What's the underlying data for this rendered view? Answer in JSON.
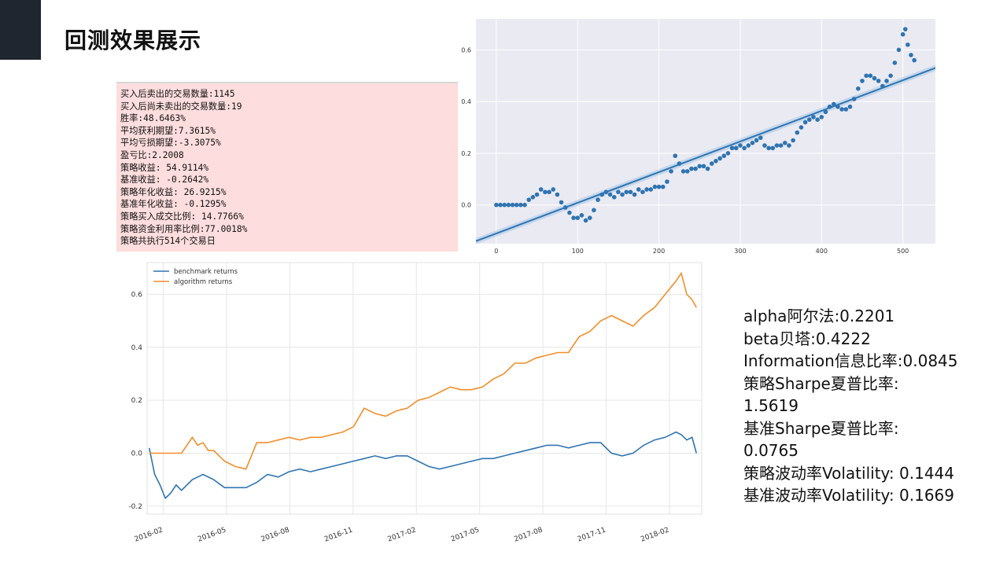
{
  "title": "回测效果展示",
  "stats_lines": [
    "买入后卖出的交易数量:1145",
    "买入后尚未卖出的交易数量:19",
    "胜率:48.6463%",
    "平均获利期望:7.3615%",
    "平均亏损期望:-3.3075%",
    "盈亏比:2.2008",
    "策略收益: 54.9114%",
    "基准收益: -0.2642%",
    "策略年化收益: 26.9215%",
    "基准年化收益: -0.1295%",
    "策略买入成交比例: 14.7766%",
    "策略资金利用率比例:77.0018%",
    "策略共执行514个交易日"
  ],
  "metrics_lines": [
    "alpha阿尔法:0.2201",
    "beta贝塔:0.4222",
    "Information信息比率:0.0845",
    "策略Sharpe夏普比率:",
    "1.5619",
    "基准Sharpe夏普比率:",
    "0.0765",
    "策略波动率Volatility: 0.1444",
    "基准波动率Volatility: 0.1669"
  ],
  "colors": {
    "series_blue": "#2f74b1",
    "series_orange": "#f28e2b",
    "stats_bg": "#fddddd",
    "corner": "#1f2630"
  },
  "chart_data": [
    {
      "type": "scatter",
      "title": "",
      "xlabel": "",
      "ylabel": "",
      "xlim": [
        -25,
        540
      ],
      "ylim": [
        -0.15,
        0.72
      ],
      "xticks": [
        0,
        100,
        200,
        300,
        400,
        500
      ],
      "yticks": [
        0.0,
        0.2,
        0.4,
        0.6
      ],
      "grid": true,
      "points_xy": [
        [
          0,
          0.0
        ],
        [
          5,
          0.0
        ],
        [
          10,
          0.0
        ],
        [
          15,
          0.0
        ],
        [
          20,
          0.0
        ],
        [
          25,
          0.0
        ],
        [
          30,
          0.0
        ],
        [
          35,
          0.0
        ],
        [
          40,
          0.02
        ],
        [
          45,
          0.03
        ],
        [
          50,
          0.04
        ],
        [
          55,
          0.06
        ],
        [
          60,
          0.05
        ],
        [
          65,
          0.05
        ],
        [
          70,
          0.06
        ],
        [
          75,
          0.04
        ],
        [
          80,
          0.01
        ],
        [
          85,
          -0.01
        ],
        [
          90,
          -0.03
        ],
        [
          95,
          -0.05
        ],
        [
          100,
          -0.05
        ],
        [
          105,
          -0.04
        ],
        [
          110,
          -0.06
        ],
        [
          115,
          -0.05
        ],
        [
          120,
          -0.02
        ],
        [
          125,
          0.02
        ],
        [
          130,
          0.04
        ],
        [
          135,
          0.05
        ],
        [
          140,
          0.04
        ],
        [
          145,
          0.03
        ],
        [
          150,
          0.05
        ],
        [
          155,
          0.04
        ],
        [
          160,
          0.05
        ],
        [
          165,
          0.05
        ],
        [
          170,
          0.04
        ],
        [
          175,
          0.06
        ],
        [
          180,
          0.05
        ],
        [
          185,
          0.06
        ],
        [
          190,
          0.06
        ],
        [
          195,
          0.07
        ],
        [
          200,
          0.07
        ],
        [
          205,
          0.07
        ],
        [
          210,
          0.09
        ],
        [
          215,
          0.13
        ],
        [
          220,
          0.19
        ],
        [
          225,
          0.16
        ],
        [
          230,
          0.13
        ],
        [
          235,
          0.13
        ],
        [
          240,
          0.14
        ],
        [
          245,
          0.14
        ],
        [
          250,
          0.15
        ],
        [
          255,
          0.15
        ],
        [
          260,
          0.14
        ],
        [
          265,
          0.16
        ],
        [
          270,
          0.17
        ],
        [
          275,
          0.18
        ],
        [
          280,
          0.19
        ],
        [
          285,
          0.2
        ],
        [
          290,
          0.22
        ],
        [
          295,
          0.22
        ],
        [
          300,
          0.23
        ],
        [
          305,
          0.22
        ],
        [
          310,
          0.23
        ],
        [
          315,
          0.24
        ],
        [
          320,
          0.25
        ],
        [
          325,
          0.26
        ],
        [
          330,
          0.23
        ],
        [
          335,
          0.22
        ],
        [
          340,
          0.22
        ],
        [
          345,
          0.23
        ],
        [
          350,
          0.23
        ],
        [
          355,
          0.24
        ],
        [
          360,
          0.23
        ],
        [
          365,
          0.25
        ],
        [
          370,
          0.28
        ],
        [
          375,
          0.3
        ],
        [
          380,
          0.32
        ],
        [
          385,
          0.33
        ],
        [
          390,
          0.34
        ],
        [
          395,
          0.33
        ],
        [
          400,
          0.34
        ],
        [
          405,
          0.36
        ],
        [
          410,
          0.38
        ],
        [
          415,
          0.39
        ],
        [
          420,
          0.38
        ],
        [
          425,
          0.37
        ],
        [
          430,
          0.37
        ],
        [
          435,
          0.38
        ],
        [
          440,
          0.41
        ],
        [
          445,
          0.45
        ],
        [
          450,
          0.48
        ],
        [
          455,
          0.5
        ],
        [
          460,
          0.5
        ],
        [
          465,
          0.49
        ],
        [
          470,
          0.48
        ],
        [
          475,
          0.46
        ],
        [
          480,
          0.48
        ],
        [
          485,
          0.5
        ],
        [
          490,
          0.55
        ],
        [
          495,
          0.6
        ],
        [
          500,
          0.66
        ],
        [
          503,
          0.68
        ],
        [
          506,
          0.62
        ],
        [
          510,
          0.58
        ],
        [
          514,
          0.56
        ]
      ],
      "fit_line": {
        "x": [
          -25,
          540
        ],
        "y": [
          -0.14,
          0.53
        ]
      }
    },
    {
      "type": "line",
      "title": "",
      "xlabel": "",
      "ylabel": "",
      "x_ticks": [
        "2016-02",
        "2016-05",
        "2016-08",
        "2016-11",
        "2017-02",
        "2017-05",
        "2017-08",
        "2017-11",
        "2018-02"
      ],
      "xlim": [
        -2,
        514
      ],
      "ylim": [
        -0.23,
        0.72
      ],
      "yticks": [
        -0.2,
        0.0,
        0.2,
        0.4,
        0.6
      ],
      "grid": true,
      "legend_position": "top-left",
      "series": [
        {
          "name": "benchmark returns",
          "color": "#2f74b1",
          "x": [
            0,
            5,
            10,
            15,
            20,
            25,
            30,
            40,
            50,
            60,
            70,
            80,
            90,
            100,
            110,
            120,
            130,
            140,
            150,
            160,
            170,
            180,
            190,
            200,
            210,
            220,
            230,
            240,
            250,
            260,
            270,
            280,
            290,
            300,
            310,
            320,
            330,
            340,
            350,
            360,
            370,
            380,
            390,
            400,
            410,
            420,
            430,
            440,
            450,
            460,
            470,
            480,
            490,
            495,
            500,
            505,
            509
          ],
          "y": [
            0.02,
            -0.08,
            -0.12,
            -0.17,
            -0.15,
            -0.12,
            -0.14,
            -0.1,
            -0.08,
            -0.1,
            -0.13,
            -0.13,
            -0.13,
            -0.11,
            -0.08,
            -0.09,
            -0.07,
            -0.06,
            -0.07,
            -0.06,
            -0.05,
            -0.04,
            -0.03,
            -0.02,
            -0.01,
            -0.02,
            -0.01,
            -0.01,
            -0.03,
            -0.05,
            -0.06,
            -0.05,
            -0.04,
            -0.03,
            -0.02,
            -0.02,
            -0.01,
            0.0,
            0.01,
            0.02,
            0.03,
            0.03,
            0.02,
            0.03,
            0.04,
            0.04,
            0.0,
            -0.01,
            0.0,
            0.03,
            0.05,
            0.06,
            0.08,
            0.07,
            0.05,
            0.06,
            0.0
          ]
        },
        {
          "name": "algorithm returns",
          "color": "#f28e2b",
          "x": [
            0,
            10,
            20,
            30,
            35,
            40,
            45,
            50,
            55,
            60,
            70,
            80,
            90,
            100,
            110,
            120,
            130,
            140,
            150,
            160,
            170,
            180,
            190,
            200,
            210,
            220,
            230,
            240,
            250,
            260,
            270,
            280,
            290,
            300,
            310,
            320,
            330,
            340,
            350,
            360,
            370,
            380,
            390,
            400,
            410,
            420,
            430,
            440,
            450,
            460,
            470,
            480,
            490,
            495,
            500,
            505,
            509
          ],
          "y": [
            0.0,
            0.0,
            0.0,
            0.0,
            0.03,
            0.06,
            0.03,
            0.04,
            0.01,
            0.01,
            -0.03,
            -0.05,
            -0.06,
            0.04,
            0.04,
            0.05,
            0.06,
            0.05,
            0.06,
            0.06,
            0.07,
            0.08,
            0.1,
            0.17,
            0.15,
            0.14,
            0.16,
            0.17,
            0.2,
            0.21,
            0.23,
            0.25,
            0.24,
            0.24,
            0.25,
            0.28,
            0.3,
            0.34,
            0.34,
            0.36,
            0.37,
            0.38,
            0.38,
            0.44,
            0.46,
            0.5,
            0.52,
            0.5,
            0.48,
            0.52,
            0.55,
            0.6,
            0.65,
            0.68,
            0.6,
            0.58,
            0.55
          ]
        }
      ]
    }
  ]
}
